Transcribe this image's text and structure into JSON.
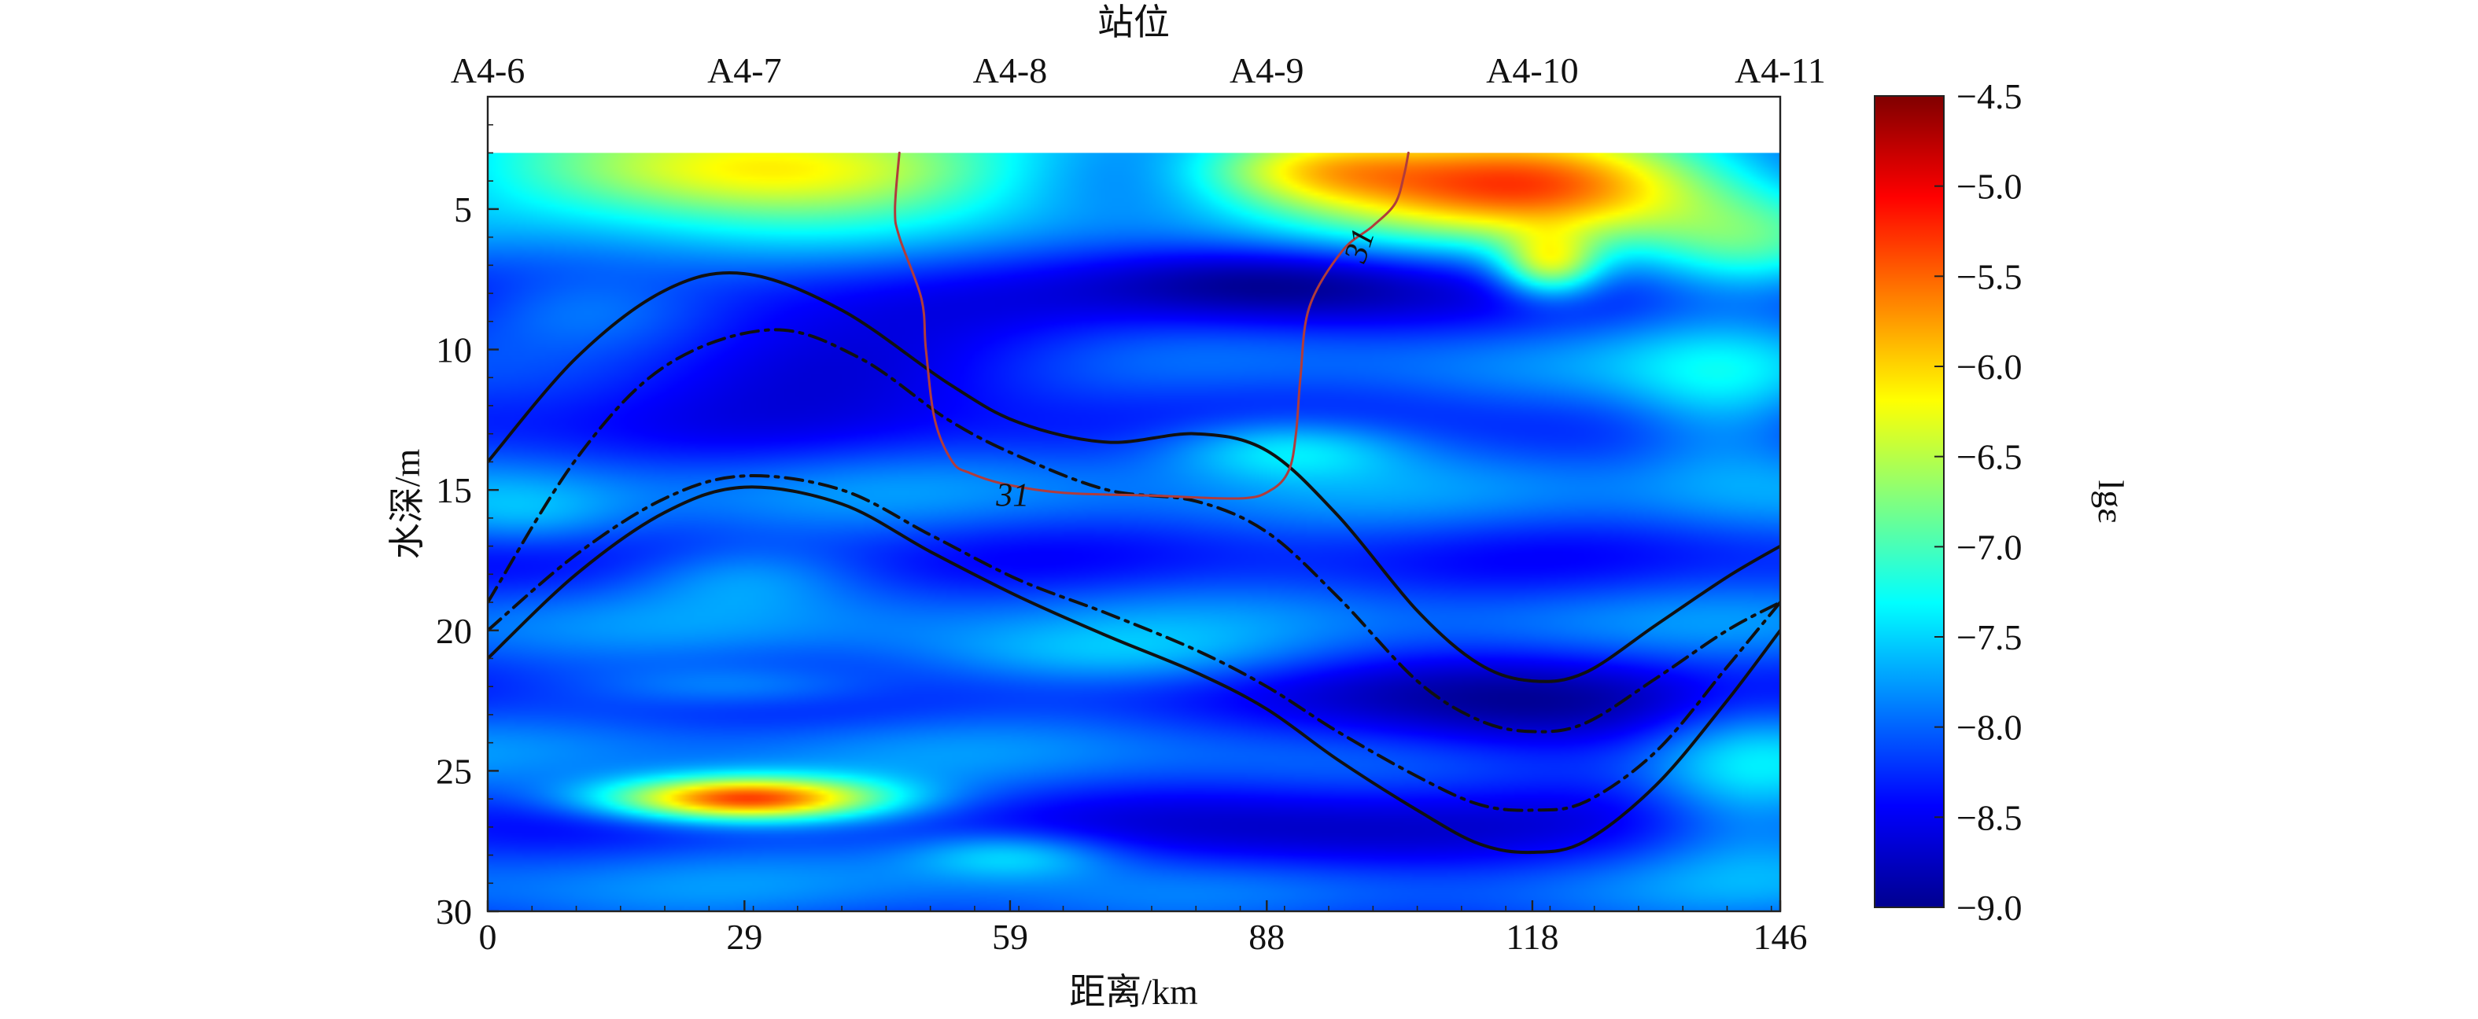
{
  "chart_data": {
    "type": "heatmap",
    "title": "",
    "xlabel": "距离/km",
    "ylabel": "水深/m",
    "top_axis_label": "站位",
    "colorbar_label": "lgε",
    "x_ticks": [
      0,
      29,
      59,
      88,
      118,
      146
    ],
    "y_ticks": [
      5,
      10,
      15,
      20,
      25,
      30
    ],
    "colorbar_ticks": [
      -4.5,
      -5.0,
      -5.5,
      -6.0,
      -6.5,
      -7.0,
      -7.5,
      -8.0,
      -8.5,
      -9.0
    ],
    "colorbar_tick_labels": [
      "−4.5",
      "−5.0",
      "−5.5",
      "−6.0",
      "−6.5",
      "−7.0",
      "−7.5",
      "−8.0",
      "−8.5",
      "−9.0"
    ],
    "stations": [
      {
        "name": "A4-6",
        "x": 0
      },
      {
        "name": "A4-7",
        "x": 29
      },
      {
        "name": "A4-8",
        "x": 59
      },
      {
        "name": "A4-9",
        "x": 88
      },
      {
        "name": "A4-10",
        "x": 118
      },
      {
        "name": "A4-11",
        "x": 146
      }
    ],
    "xlim": [
      0,
      146
    ],
    "ylim": [
      30,
      1
    ],
    "clim": [
      -9.0,
      -4.5
    ],
    "data_top_depth": 3,
    "colormap": [
      "#00008f",
      "#0000ff",
      "#0080ff",
      "#00ffff",
      "#80ff80",
      "#ffff00",
      "#ff8000",
      "#ff0000",
      "#800000"
    ],
    "heatmap_features": [
      {
        "x": 29,
        "y": 26.0,
        "value": -5.2,
        "sx": 11,
        "sy": 0.55
      },
      {
        "x": 29,
        "y": 22.0,
        "value": -7.6,
        "sx": 12,
        "sy": 0.55
      },
      {
        "x": 59,
        "y": 28.0,
        "value": -7.4,
        "sx": 8,
        "sy": 0.6
      },
      {
        "x": 30,
        "y": 3.5,
        "value": -5.8,
        "sx": 22,
        "sy": 1.3
      },
      {
        "x": 118,
        "y": 4.0,
        "value": -5.2,
        "sx": 17,
        "sy": 1.4
      },
      {
        "x": 92,
        "y": 3.5,
        "value": -6.6,
        "sx": 10,
        "sy": 1.0
      },
      {
        "x": 120,
        "y": 7.0,
        "value": -6.5,
        "sx": 4,
        "sy": 0.8
      },
      {
        "x": 142,
        "y": 6.5,
        "value": -7.4,
        "sx": 8,
        "sy": 1.2
      },
      {
        "x": 88,
        "y": 7.5,
        "value": -8.9,
        "sx": 14,
        "sy": 1.0
      },
      {
        "x": 36,
        "y": 10.5,
        "value": -8.8,
        "sx": 26,
        "sy": 1.2
      },
      {
        "x": 90,
        "y": 13.5,
        "value": -7.2,
        "sx": 10,
        "sy": 0.8
      },
      {
        "x": 29,
        "y": 18.0,
        "value": -7.7,
        "sx": 9,
        "sy": 0.8
      },
      {
        "x": 118,
        "y": 23.0,
        "value": -8.9,
        "sx": 16,
        "sy": 1.5
      },
      {
        "x": 95,
        "y": 27.5,
        "value": -8.6,
        "sx": 18,
        "sy": 1.2
      },
      {
        "x": 142,
        "y": 25.0,
        "value": -7.4,
        "sx": 8,
        "sy": 2.2
      },
      {
        "x": 140,
        "y": 12.0,
        "value": -7.4,
        "sx": 8,
        "sy": 2.0
      },
      {
        "x": 10,
        "y": 8.5,
        "value": -7.6,
        "sx": 10,
        "sy": 1.0
      },
      {
        "x": 5,
        "y": 16.0,
        "value": -7.7,
        "sx": 8,
        "sy": 0.9
      },
      {
        "x": 70,
        "y": 21.0,
        "value": -7.7,
        "sx": 18,
        "sy": 0.8
      }
    ],
    "isopycnals": [
      {
        "style": "solid",
        "x": [
          0,
          10,
          20,
          29,
          40,
          52,
          60,
          70,
          80,
          88,
          96,
          105,
          112,
          118,
          124,
          132,
          140,
          146
        ],
        "y": [
          14.0,
          10.3,
          7.9,
          7.3,
          8.6,
          11.2,
          12.6,
          13.3,
          13.0,
          13.6,
          15.9,
          19.3,
          21.2,
          21.8,
          21.5,
          19.8,
          18.1,
          17.0
        ]
      },
      {
        "style": "dashdot",
        "x": [
          0,
          10,
          20,
          32,
          42,
          52,
          60,
          70,
          80,
          88,
          96,
          105,
          112,
          118,
          124,
          132,
          140,
          146
        ],
        "y": [
          19.0,
          13.9,
          10.6,
          9.3,
          10.3,
          12.5,
          13.8,
          15.0,
          15.4,
          16.5,
          18.8,
          21.8,
          23.2,
          23.6,
          23.3,
          21.7,
          20.0,
          19.0
        ]
      },
      {
        "style": "dashdot",
        "x": [
          0,
          10,
          20,
          29,
          40,
          50,
          60,
          70,
          80,
          88,
          96,
          105,
          112,
          118,
          124,
          132,
          140,
          146
        ],
        "y": [
          20.0,
          17.3,
          15.3,
          14.5,
          15.0,
          16.6,
          18.2,
          19.4,
          20.7,
          22.0,
          23.6,
          25.2,
          26.2,
          26.4,
          26.1,
          24.3,
          21.3,
          19.0
        ]
      },
      {
        "style": "solid",
        "x": [
          0,
          10,
          20,
          29,
          40,
          50,
          60,
          70,
          80,
          88,
          96,
          105,
          112,
          118,
          124,
          132,
          140,
          146
        ],
        "y": [
          21.0,
          18.0,
          15.8,
          14.9,
          15.5,
          17.2,
          18.8,
          20.2,
          21.5,
          22.8,
          24.6,
          26.4,
          27.6,
          27.9,
          27.5,
          25.5,
          22.5,
          20.0
        ]
      }
    ],
    "salinity_contours": [
      {
        "label": "31",
        "x": [
          46.5,
          46.0,
          46.5,
          49,
          49.5,
          50.5,
          52.5,
          54.5,
          58.5,
          65,
          75,
          85,
          88.5,
          90.5,
          91.3,
          91.8,
          92.8,
          96.5,
          100,
          102.5,
          103.5,
          104
        ],
        "y": [
          3.0,
          5.0,
          6.0,
          8.2,
          10.0,
          12.5,
          14.0,
          14.4,
          14.8,
          15.1,
          15.2,
          15.3,
          15.0,
          14.3,
          13.0,
          11.0,
          8.5,
          6.5,
          5.6,
          4.8,
          3.8,
          3.0
        ]
      }
    ],
    "contour_labels": [
      {
        "text": "31",
        "x": 59.3,
        "y": 15.2,
        "angle": 0
      },
      {
        "text": "31",
        "x": 98.5,
        "y": 6.3,
        "angle": -72
      }
    ],
    "contour_line_color": "#b03c3c",
    "isopycnal_color": "#111111",
    "grid": false,
    "legend": "none"
  }
}
